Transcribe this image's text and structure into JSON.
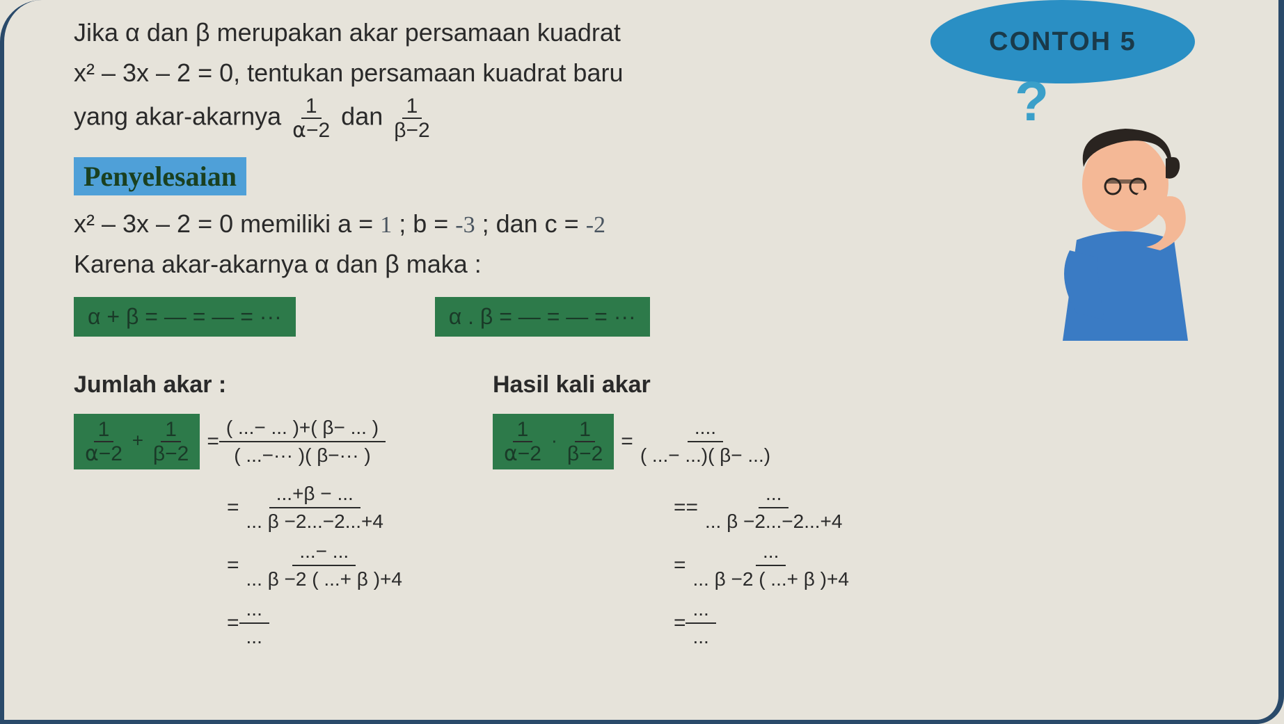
{
  "colors": {
    "page_bg": "#e6e3da",
    "border": "#2a4a6a",
    "text": "#2a2a2a",
    "badge_bg": "#2a8fc4",
    "badge_text": "#1a3a4a",
    "qmark": "#3a9fc9",
    "highlight_bg": "#4fa0d8",
    "highlight_text": "#1a4020",
    "hide_bg": "#2d7a4a",
    "hide_text": "#1a3a28",
    "handwrite": "#4a5560",
    "thinker_shirt": "#3a7bc4",
    "thinker_skin": "#f4b896",
    "thinker_hair": "#2a2420"
  },
  "badge": {
    "text": "CONTOH 5"
  },
  "problem": {
    "line1": "Jika  α dan β merupakan akar persamaan kuadrat",
    "line2_pre": "x² – 3x – 2 = 0, tentukan persamaan kuadrat baru",
    "line3_pre": "yang akar-akarnya ",
    "frac1_num": "1",
    "frac1_den": "⍺−2",
    "conj": " dan ",
    "frac2_num": "1",
    "frac2_den": "β−2"
  },
  "section_title": "Penyelesaian",
  "fill": {
    "eq_text": "x² – 3x – 2 = 0 memiliki a = ",
    "a_val": "1",
    "b_text": "; b = ",
    "b_val": "-3",
    "c_text": "; dan c = ",
    "c_val": "-2"
  },
  "karena": "Karena akar-akarnya α dan β maka :",
  "hide1": "α + β = — = — = ···",
  "hide2": "α . β = — = — = ···",
  "left": {
    "title": "Jumlah akar :",
    "lhs_hide": "1/(⍺−2) + 1/(β−2)",
    "r1_num": "( ...− ... )+( β− ... )",
    "r1_den": "( ...−··· )( β−··· )",
    "r2_num": "...+β − ...",
    "r2_den": "... β −2...−2...+4",
    "r3_num": "...− ...",
    "r3_den": "... β −2 ( ...+ β )+4",
    "r4_num": "...",
    "r4_den": "..."
  },
  "right": {
    "title": "Hasil kali akar",
    "lhs_hide": "1/(⍺−2) · 1/(β−2)",
    "r1_num": "....",
    "r1_den": "( ...− ...)( β− ...)",
    "r2_num": "...",
    "r2_den": "... β −2...−2...+4",
    "r3_num": "...",
    "r3_den": "... β −2 ( ...+ β )+4",
    "r4_num": "...",
    "r4_den": "..."
  }
}
